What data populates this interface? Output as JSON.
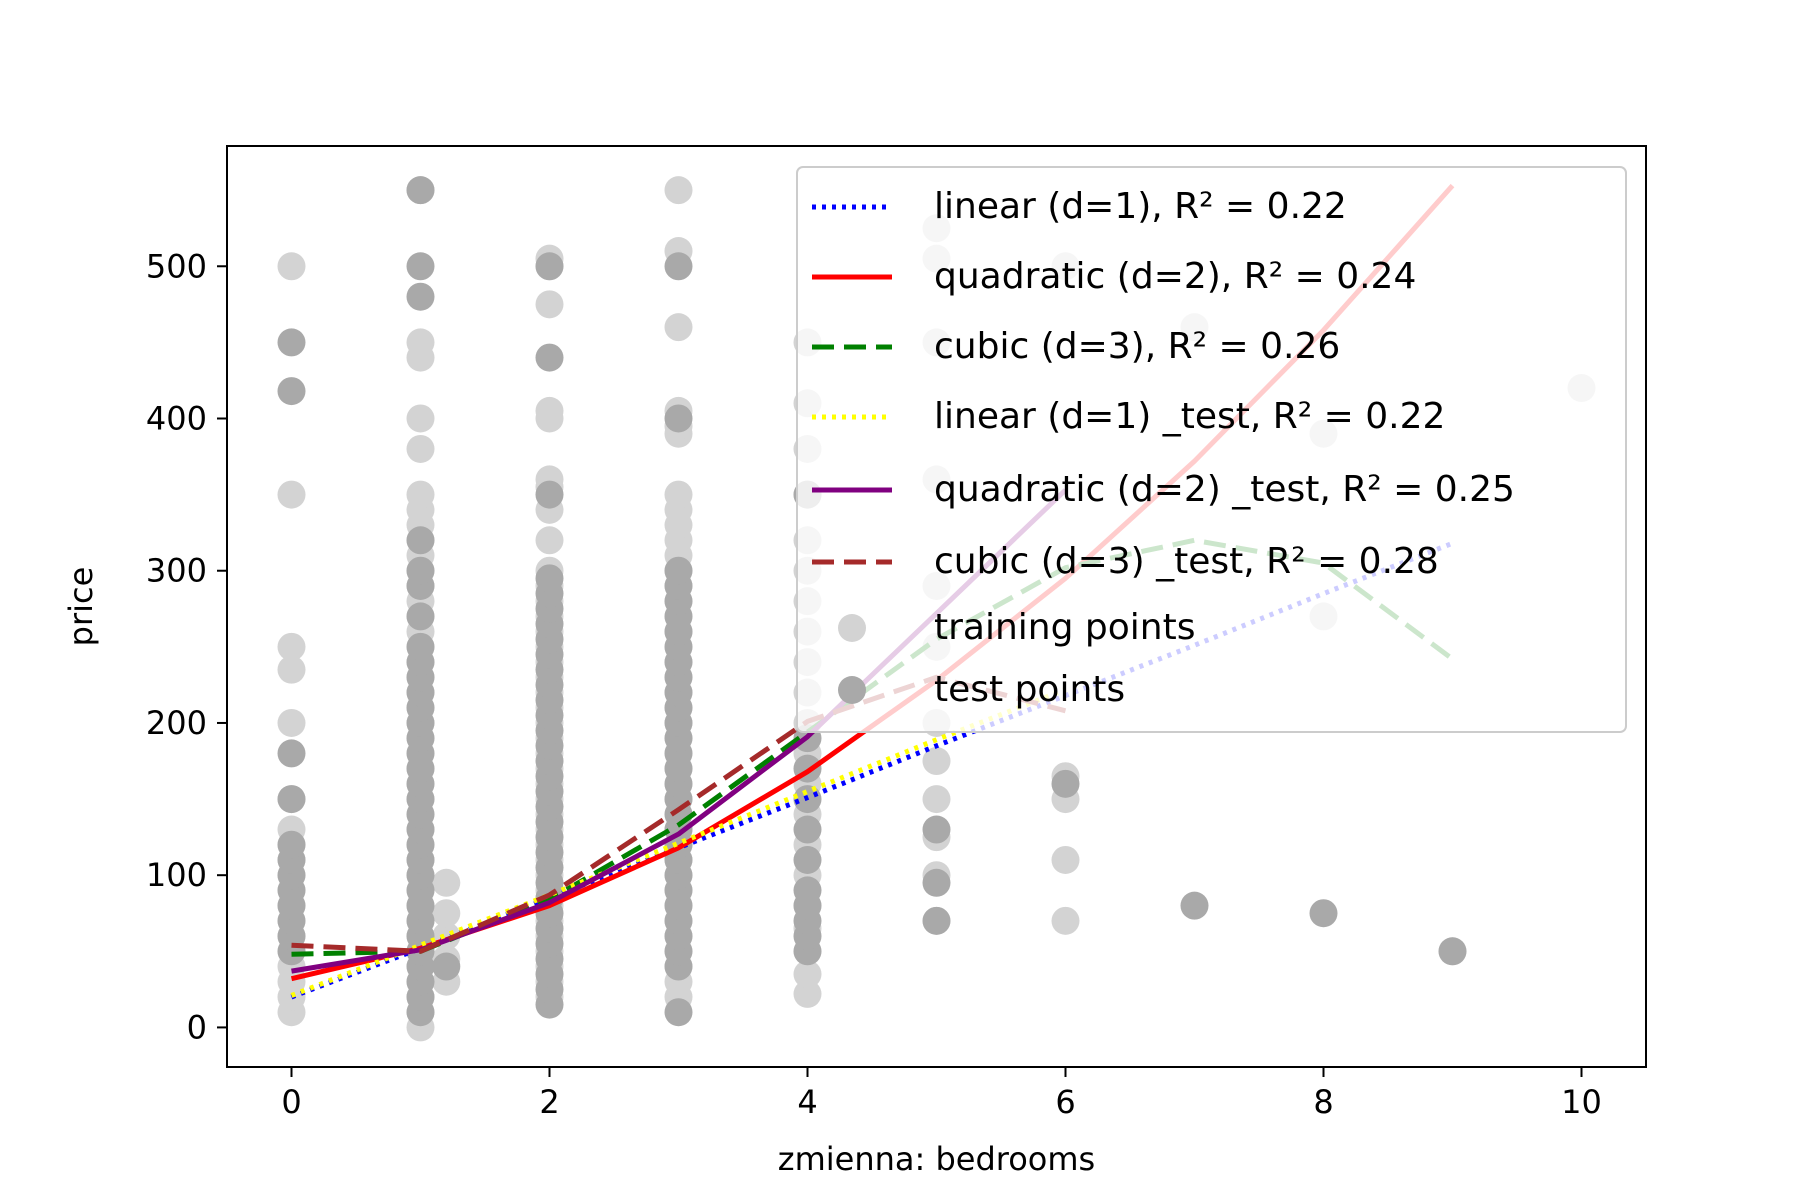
{
  "chart_data": {
    "type": "scatter",
    "title": "",
    "xlabel": "zmienna: bedrooms",
    "ylabel": "price",
    "xlim": [
      -0.5,
      10.5
    ],
    "ylim": [
      -26,
      579
    ],
    "x_ticks": [
      0,
      2,
      4,
      6,
      8,
      10
    ],
    "y_ticks": [
      0,
      100,
      200,
      300,
      400,
      500
    ],
    "grid": false,
    "legend_position": "upper-right",
    "colors": {
      "training_points": "#d3d3d3",
      "test_points": "#a9a9a9",
      "linear": "#0000ff",
      "quadratic": "#ff0000",
      "cubic": "#008000",
      "linear_test": "#ffff00",
      "quadratic_test": "#800080",
      "cubic_test": "#a52a2a"
    },
    "series": [
      {
        "name": "linear (d=1), R² = 0.22",
        "style": "dotted",
        "color": "#0000ff",
        "x": [
          0,
          1,
          2,
          3,
          4,
          5,
          6,
          7,
          8,
          9
        ],
        "y": [
          20,
          52,
          85,
          118,
          151,
          185,
          218,
          251,
          285,
          318
        ]
      },
      {
        "name": "quadratic (d=2), R² = 0.24",
        "style": "solid",
        "color": "#ff0000",
        "x": [
          0,
          1,
          2,
          3,
          4,
          5,
          6,
          7,
          8,
          9
        ],
        "y": [
          32,
          52,
          80,
          118,
          168,
          228,
          295,
          372,
          458,
          553
        ]
      },
      {
        "name": "cubic (d=3), R² = 0.26",
        "style": "dashed",
        "color": "#008000",
        "x": [
          0,
          1,
          2,
          3,
          4,
          5,
          6,
          7,
          8,
          9
        ],
        "y": [
          48,
          50,
          84,
          133,
          194,
          255,
          302,
          320,
          305,
          242
        ]
      },
      {
        "name": "linear (d=1) _test, R² = 0.22",
        "style": "dotted",
        "color": "#ffff00",
        "x": [
          0,
          1,
          2,
          3,
          4,
          5,
          6
        ],
        "y": [
          21,
          54,
          87,
          121,
          155,
          189,
          222
        ]
      },
      {
        "name": "quadratic (d=2) _test, R² = 0.25",
        "style": "solid",
        "color": "#800080",
        "x": [
          0,
          1,
          2,
          3,
          4,
          5,
          6
        ],
        "y": [
          37,
          51,
          82,
          127,
          191,
          272,
          353
        ]
      },
      {
        "name": "cubic (d=3) _test, R² = 0.28",
        "style": "dashed",
        "color": "#a52a2a",
        "x": [
          0,
          1,
          2,
          3,
          4,
          5,
          6
        ],
        "y": [
          54,
          50,
          87,
          143,
          201,
          230,
          208
        ]
      }
    ],
    "training_points": {
      "name": "training points",
      "points": [
        [
          0,
          10
        ],
        [
          0,
          20
        ],
        [
          0,
          30
        ],
        [
          0,
          40
        ],
        [
          0,
          50
        ],
        [
          0,
          60
        ],
        [
          0,
          70
        ],
        [
          0,
          80
        ],
        [
          0,
          90
        ],
        [
          0,
          100
        ],
        [
          0,
          110
        ],
        [
          0,
          120
        ],
        [
          0,
          130
        ],
        [
          0,
          150
        ],
        [
          0,
          200
        ],
        [
          0,
          235
        ],
        [
          0,
          250
        ],
        [
          0,
          350
        ],
        [
          0,
          500
        ],
        [
          1,
          0
        ],
        [
          1,
          10
        ],
        [
          1,
          20
        ],
        [
          1,
          30
        ],
        [
          1,
          40
        ],
        [
          1,
          50
        ],
        [
          1,
          60
        ],
        [
          1,
          70
        ],
        [
          1,
          80
        ],
        [
          1,
          90
        ],
        [
          1,
          100
        ],
        [
          1,
          110
        ],
        [
          1,
          120
        ],
        [
          1,
          130
        ],
        [
          1,
          140
        ],
        [
          1,
          150
        ],
        [
          1,
          160
        ],
        [
          1,
          170
        ],
        [
          1,
          180
        ],
        [
          1,
          190
        ],
        [
          1,
          200
        ],
        [
          1,
          210
        ],
        [
          1,
          220
        ],
        [
          1,
          230
        ],
        [
          1,
          240
        ],
        [
          1,
          250
        ],
        [
          1,
          260
        ],
        [
          1,
          270
        ],
        [
          1,
          280
        ],
        [
          1,
          290
        ],
        [
          1,
          300
        ],
        [
          1,
          310
        ],
        [
          1,
          320
        ],
        [
          1,
          330
        ],
        [
          1,
          340
        ],
        [
          1,
          350
        ],
        [
          1,
          380
        ],
        [
          1,
          400
        ],
        [
          1,
          440
        ],
        [
          1,
          450
        ],
        [
          1,
          550
        ],
        [
          1.2,
          30
        ],
        [
          1.2,
          45
        ],
        [
          1.2,
          60
        ],
        [
          1.2,
          75
        ],
        [
          1.2,
          95
        ],
        [
          2,
          20
        ],
        [
          2,
          30
        ],
        [
          2,
          40
        ],
        [
          2,
          50
        ],
        [
          2,
          60
        ],
        [
          2,
          70
        ],
        [
          2,
          80
        ],
        [
          2,
          90
        ],
        [
          2,
          100
        ],
        [
          2,
          110
        ],
        [
          2,
          120
        ],
        [
          2,
          130
        ],
        [
          2,
          140
        ],
        [
          2,
          150
        ],
        [
          2,
          160
        ],
        [
          2,
          170
        ],
        [
          2,
          180
        ],
        [
          2,
          190
        ],
        [
          2,
          200
        ],
        [
          2,
          210
        ],
        [
          2,
          220
        ],
        [
          2,
          230
        ],
        [
          2,
          240
        ],
        [
          2,
          250
        ],
        [
          2,
          260
        ],
        [
          2,
          270
        ],
        [
          2,
          280
        ],
        [
          2,
          290
        ],
        [
          2,
          300
        ],
        [
          2,
          320
        ],
        [
          2,
          340
        ],
        [
          2,
          355
        ],
        [
          2,
          360
        ],
        [
          2,
          400
        ],
        [
          2,
          405
        ],
        [
          2,
          475
        ],
        [
          2,
          500
        ],
        [
          2,
          505
        ],
        [
          3,
          20
        ],
        [
          3,
          30
        ],
        [
          3,
          40
        ],
        [
          3,
          50
        ],
        [
          3,
          60
        ],
        [
          3,
          70
        ],
        [
          3,
          80
        ],
        [
          3,
          90
        ],
        [
          3,
          100
        ],
        [
          3,
          110
        ],
        [
          3,
          120
        ],
        [
          3,
          130
        ],
        [
          3,
          140
        ],
        [
          3,
          150
        ],
        [
          3,
          160
        ],
        [
          3,
          170
        ],
        [
          3,
          180
        ],
        [
          3,
          190
        ],
        [
          3,
          200
        ],
        [
          3,
          210
        ],
        [
          3,
          220
        ],
        [
          3,
          230
        ],
        [
          3,
          240
        ],
        [
          3,
          250
        ],
        [
          3,
          260
        ],
        [
          3,
          270
        ],
        [
          3,
          280
        ],
        [
          3,
          290
        ],
        [
          3,
          300
        ],
        [
          3,
          310
        ],
        [
          3,
          320
        ],
        [
          3,
          330
        ],
        [
          3,
          340
        ],
        [
          3,
          350
        ],
        [
          3,
          390
        ],
        [
          3,
          395
        ],
        [
          3,
          405
        ],
        [
          3,
          460
        ],
        [
          3,
          510
        ],
        [
          3,
          550
        ],
        [
          4,
          22
        ],
        [
          4,
          35
        ],
        [
          4,
          50
        ],
        [
          4,
          65
        ],
        [
          4,
          80
        ],
        [
          4,
          100
        ],
        [
          4,
          120
        ],
        [
          4,
          140
        ],
        [
          4,
          160
        ],
        [
          4,
          180
        ],
        [
          4,
          200
        ],
        [
          4,
          220
        ],
        [
          4,
          240
        ],
        [
          4,
          260
        ],
        [
          4,
          280
        ],
        [
          4,
          300
        ],
        [
          4,
          320
        ],
        [
          4,
          350
        ],
        [
          4,
          380
        ],
        [
          4,
          410
        ],
        [
          4,
          450
        ],
        [
          5,
          70
        ],
        [
          5,
          100
        ],
        [
          5,
          125
        ],
        [
          5,
          150
        ],
        [
          5,
          175
        ],
        [
          5,
          200
        ],
        [
          5,
          250
        ],
        [
          5,
          290
        ],
        [
          5,
          360
        ],
        [
          5,
          450
        ],
        [
          5,
          505
        ],
        [
          5,
          525
        ],
        [
          6,
          70
        ],
        [
          6,
          110
        ],
        [
          6,
          150
        ],
        [
          6,
          165
        ],
        [
          6,
          500
        ],
        [
          7,
          460
        ],
        [
          8,
          270
        ],
        [
          8,
          390
        ],
        [
          9,
          50
        ],
        [
          10,
          420
        ]
      ]
    },
    "test_points": {
      "name": "test points",
      "points": [
        [
          0,
          50
        ],
        [
          0,
          60
        ],
        [
          0,
          70
        ],
        [
          0,
          80
        ],
        [
          0,
          90
        ],
        [
          0,
          100
        ],
        [
          0,
          110
        ],
        [
          0,
          120
        ],
        [
          0,
          150
        ],
        [
          0,
          180
        ],
        [
          0,
          418
        ],
        [
          0,
          450
        ],
        [
          1,
          10
        ],
        [
          1,
          20
        ],
        [
          1,
          30
        ],
        [
          1,
          40
        ],
        [
          1,
          50
        ],
        [
          1,
          60
        ],
        [
          1,
          70
        ],
        [
          1,
          80
        ],
        [
          1,
          90
        ],
        [
          1,
          100
        ],
        [
          1,
          110
        ],
        [
          1,
          120
        ],
        [
          1,
          130
        ],
        [
          1,
          140
        ],
        [
          1,
          150
        ],
        [
          1,
          160
        ],
        [
          1,
          170
        ],
        [
          1,
          180
        ],
        [
          1,
          190
        ],
        [
          1,
          200
        ],
        [
          1,
          210
        ],
        [
          1,
          220
        ],
        [
          1,
          230
        ],
        [
          1,
          240
        ],
        [
          1,
          250
        ],
        [
          1,
          270
        ],
        [
          1,
          290
        ],
        [
          1,
          300
        ],
        [
          1,
          320
        ],
        [
          1,
          480
        ],
        [
          1,
          500
        ],
        [
          1,
          550
        ],
        [
          1.2,
          40
        ],
        [
          2,
          15
        ],
        [
          2,
          25
        ],
        [
          2,
          35
        ],
        [
          2,
          45
        ],
        [
          2,
          55
        ],
        [
          2,
          65
        ],
        [
          2,
          75
        ],
        [
          2,
          85
        ],
        [
          2,
          95
        ],
        [
          2,
          105
        ],
        [
          2,
          115
        ],
        [
          2,
          125
        ],
        [
          2,
          135
        ],
        [
          2,
          145
        ],
        [
          2,
          155
        ],
        [
          2,
          165
        ],
        [
          2,
          175
        ],
        [
          2,
          185
        ],
        [
          2,
          195
        ],
        [
          2,
          205
        ],
        [
          2,
          215
        ],
        [
          2,
          225
        ],
        [
          2,
          235
        ],
        [
          2,
          245
        ],
        [
          2,
          255
        ],
        [
          2,
          265
        ],
        [
          2,
          275
        ],
        [
          2,
          285
        ],
        [
          2,
          295
        ],
        [
          2,
          350
        ],
        [
          2,
          440
        ],
        [
          2,
          500
        ],
        [
          3,
          10
        ],
        [
          3,
          40
        ],
        [
          3,
          50
        ],
        [
          3,
          60
        ],
        [
          3,
          70
        ],
        [
          3,
          80
        ],
        [
          3,
          90
        ],
        [
          3,
          100
        ],
        [
          3,
          110
        ],
        [
          3,
          120
        ],
        [
          3,
          130
        ],
        [
          3,
          140
        ],
        [
          3,
          150
        ],
        [
          3,
          160
        ],
        [
          3,
          170
        ],
        [
          3,
          180
        ],
        [
          3,
          190
        ],
        [
          3,
          200
        ],
        [
          3,
          210
        ],
        [
          3,
          220
        ],
        [
          3,
          230
        ],
        [
          3,
          240
        ],
        [
          3,
          250
        ],
        [
          3,
          260
        ],
        [
          3,
          270
        ],
        [
          3,
          280
        ],
        [
          3,
          290
        ],
        [
          3,
          300
        ],
        [
          3,
          400
        ],
        [
          3,
          500
        ],
        [
          4,
          50
        ],
        [
          4,
          60
        ],
        [
          4,
          70
        ],
        [
          4,
          80
        ],
        [
          4,
          90
        ],
        [
          4,
          110
        ],
        [
          4,
          130
        ],
        [
          4,
          150
        ],
        [
          4,
          170
        ],
        [
          4,
          190
        ],
        [
          4,
          350
        ],
        [
          5,
          70
        ],
        [
          5,
          95
        ],
        [
          5,
          130
        ],
        [
          6,
          160
        ],
        [
          7,
          80
        ],
        [
          8,
          75
        ],
        [
          9,
          50
        ]
      ]
    }
  }
}
